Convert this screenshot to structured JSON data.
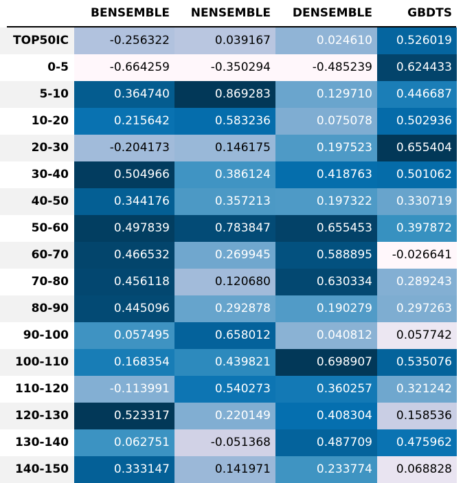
{
  "chart_data": {
    "type": "heatmap",
    "columns": [
      "BENSEMBLE",
      "NENSEMBLE",
      "DENSEMBLE",
      "GBDTS"
    ],
    "rows": [
      "TOP50IC",
      "0-5",
      "5-10",
      "10-20",
      "20-30",
      "30-40",
      "40-50",
      "50-60",
      "60-70",
      "70-80",
      "80-90",
      "90-100",
      "100-110",
      "110-120",
      "120-130",
      "130-140",
      "140-150"
    ],
    "values": [
      [
        "-0.256322",
        "0.039167",
        "0.024610",
        "0.526019"
      ],
      [
        "-0.664259",
        "-0.350294",
        "-0.485239",
        "0.624433"
      ],
      [
        "0.364740",
        "0.869283",
        "0.129710",
        "0.446687"
      ],
      [
        "0.215642",
        "0.583236",
        "0.075078",
        "0.502936"
      ],
      [
        "-0.204173",
        "0.146175",
        "0.197523",
        "0.655404"
      ],
      [
        "0.504966",
        "0.386124",
        "0.418763",
        "0.501062"
      ],
      [
        "0.344176",
        "0.357213",
        "0.197322",
        "0.330719"
      ],
      [
        "0.497839",
        "0.783847",
        "0.655453",
        "0.397872"
      ],
      [
        "0.466532",
        "0.269945",
        "0.588895",
        "-0.026641"
      ],
      [
        "0.456118",
        "0.120680",
        "0.630334",
        "0.289243"
      ],
      [
        "0.445096",
        "0.292878",
        "0.190279",
        "0.297263"
      ],
      [
        "0.057495",
        "0.658012",
        "0.040812",
        "0.057742"
      ],
      [
        "0.168354",
        "0.439821",
        "0.698907",
        "0.535076"
      ],
      [
        "-0.113991",
        "0.540273",
        "0.360257",
        "0.321242"
      ],
      [
        "0.523317",
        "0.220149",
        "0.408304",
        "0.158536"
      ],
      [
        "0.062751",
        "-0.051368",
        "0.487709",
        "0.475962"
      ],
      [
        "0.333147",
        "0.141971",
        "0.233774",
        "0.068828"
      ]
    ],
    "colormap": "PuBu",
    "color_scale": "per-column"
  }
}
